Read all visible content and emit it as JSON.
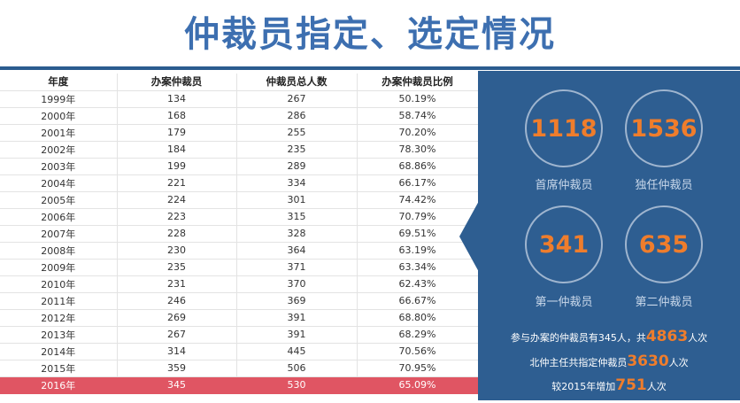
{
  "title": "仲裁员指定、选定情况",
  "table": {
    "headers": [
      "年度",
      "办案仲裁员",
      "仲裁员总人数",
      "办案仲裁员比例"
    ],
    "rows": [
      [
        "1999年",
        "134",
        "267",
        "50.19%"
      ],
      [
        "2000年",
        "168",
        "286",
        "58.74%"
      ],
      [
        "2001年",
        "179",
        "255",
        "70.20%"
      ],
      [
        "2002年",
        "184",
        "235",
        "78.30%"
      ],
      [
        "2003年",
        "199",
        "289",
        "68.86%"
      ],
      [
        "2004年",
        "221",
        "334",
        "66.17%"
      ],
      [
        "2005年",
        "224",
        "301",
        "74.42%"
      ],
      [
        "2006年",
        "223",
        "315",
        "70.79%"
      ],
      [
        "2007年",
        "228",
        "328",
        "69.51%"
      ],
      [
        "2008年",
        "230",
        "364",
        "63.19%"
      ],
      [
        "2009年",
        "235",
        "371",
        "63.34%"
      ],
      [
        "2010年",
        "231",
        "370",
        "62.43%"
      ],
      [
        "2011年",
        "246",
        "369",
        "66.67%"
      ],
      [
        "2012年",
        "269",
        "391",
        "68.80%"
      ],
      [
        "2013年",
        "267",
        "391",
        "68.29%"
      ],
      [
        "2014年",
        "314",
        "445",
        "70.56%"
      ],
      [
        "2015年",
        "359",
        "506",
        "70.95%"
      ],
      [
        "2016年",
        "345",
        "530",
        "65.09%"
      ]
    ],
    "highlight_color": "#e05563"
  },
  "stats": [
    {
      "value": "1118",
      "label": "首席仲裁员"
    },
    {
      "value": "1536",
      "label": "独任仲裁员"
    },
    {
      "value": "341",
      "label": "第一仲裁员"
    },
    {
      "value": "635",
      "label": "第二仲裁员"
    }
  ],
  "notes": {
    "line1_pre": "参与办案的仲裁员有345人，共",
    "line1_num": "4863",
    "line1_post": "人次",
    "line2_pre": "北仲主任共指定仲裁员",
    "line2_num": "3630",
    "line2_post": "人次",
    "line3_pre": "较2015年增加",
    "line3_num": "751",
    "line3_post": "人次"
  },
  "colors": {
    "title": "#3d6fb0",
    "panel": "#2e5e91",
    "accent": "#ef7d2c"
  }
}
